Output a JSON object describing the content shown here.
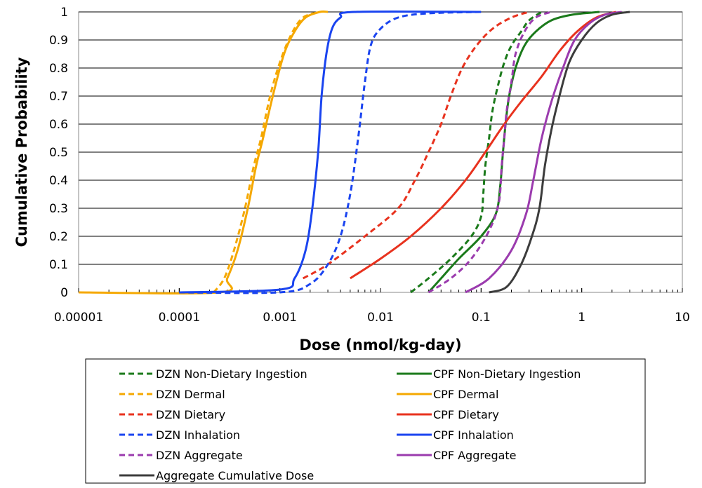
{
  "chart_data": {
    "type": "line",
    "title": "",
    "xlabel": "Dose (nmol/kg-day)",
    "ylabel": "Cumulative Probability",
    "x_scale": "log",
    "xlim": [
      1e-05,
      10
    ],
    "ylim": [
      0,
      1
    ],
    "x_ticks": [
      "0.00001",
      "0.0001",
      "0.001",
      "0.01",
      "0.1",
      "1",
      "10"
    ],
    "y_ticks": [
      "0",
      "0.1",
      "0.2",
      "0.3",
      "0.4",
      "0.5",
      "0.6",
      "0.7",
      "0.8",
      "0.9",
      "1"
    ],
    "grid": "horizontal",
    "legend_position": "bottom",
    "series": [
      {
        "name": "DZN Non-Dietary Ingestion",
        "color": "#1b7a1b",
        "dash": "dashed",
        "points": [
          [
            0.02,
            0
          ],
          [
            0.03,
            0.05
          ],
          [
            0.05,
            0.12
          ],
          [
            0.08,
            0.2
          ],
          [
            0.1,
            0.27
          ],
          [
            0.105,
            0.35
          ],
          [
            0.11,
            0.45
          ],
          [
            0.12,
            0.55
          ],
          [
            0.13,
            0.65
          ],
          [
            0.15,
            0.75
          ],
          [
            0.17,
            0.82
          ],
          [
            0.2,
            0.88
          ],
          [
            0.25,
            0.93
          ],
          [
            0.3,
            0.97
          ],
          [
            0.4,
            1
          ]
        ]
      },
      {
        "name": "CPF Non-Dietary Ingestion",
        "color": "#1b7a1b",
        "dash": "solid",
        "points": [
          [
            0.03,
            0
          ],
          [
            0.04,
            0.05
          ],
          [
            0.06,
            0.12
          ],
          [
            0.1,
            0.2
          ],
          [
            0.14,
            0.28
          ],
          [
            0.155,
            0.38
          ],
          [
            0.165,
            0.5
          ],
          [
            0.175,
            0.6
          ],
          [
            0.19,
            0.7
          ],
          [
            0.22,
            0.8
          ],
          [
            0.27,
            0.88
          ],
          [
            0.35,
            0.93
          ],
          [
            0.5,
            0.97
          ],
          [
            0.8,
            0.99
          ],
          [
            1.5,
            1
          ]
        ]
      },
      {
        "name": "DZN Dermal",
        "color": "#f5a800",
        "dash": "dashed",
        "points": [
          [
            0.00022,
            0
          ],
          [
            0.00028,
            0.05
          ],
          [
            0.00035,
            0.15
          ],
          [
            0.00045,
            0.3
          ],
          [
            0.00055,
            0.45
          ],
          [
            0.00065,
            0.55
          ],
          [
            0.0008,
            0.7
          ],
          [
            0.001,
            0.82
          ],
          [
            0.0013,
            0.92
          ],
          [
            0.0017,
            0.98
          ],
          [
            0.0025,
            1
          ]
        ]
      },
      {
        "name": "CPF Dermal",
        "color": "#f5a800",
        "dash": "solid",
        "points": [
          [
            1e-05,
            0
          ],
          [
            0.00025,
            0
          ],
          [
            0.0003,
            0.05
          ],
          [
            0.00038,
            0.15
          ],
          [
            0.00048,
            0.3
          ],
          [
            0.00058,
            0.45
          ],
          [
            0.00068,
            0.55
          ],
          [
            0.00085,
            0.7
          ],
          [
            0.0011,
            0.85
          ],
          [
            0.0014,
            0.93
          ],
          [
            0.0018,
            0.98
          ],
          [
            0.0025,
            1
          ],
          [
            0.003,
            1
          ]
        ]
      },
      {
        "name": "DZN Dietary",
        "color": "#e8321e",
        "dash": "dashed",
        "points": [
          [
            0.0017,
            0.05
          ],
          [
            0.003,
            0.1
          ],
          [
            0.007,
            0.2
          ],
          [
            0.015,
            0.3
          ],
          [
            0.022,
            0.4
          ],
          [
            0.03,
            0.5
          ],
          [
            0.04,
            0.6
          ],
          [
            0.05,
            0.7
          ],
          [
            0.065,
            0.8
          ],
          [
            0.09,
            0.88
          ],
          [
            0.13,
            0.94
          ],
          [
            0.2,
            0.98
          ],
          [
            0.3,
            1
          ]
        ]
      },
      {
        "name": "CPF Dietary",
        "color": "#e8321e",
        "dash": "solid",
        "points": [
          [
            0.005,
            0.05
          ],
          [
            0.01,
            0.12
          ],
          [
            0.02,
            0.2
          ],
          [
            0.04,
            0.3
          ],
          [
            0.07,
            0.4
          ],
          [
            0.11,
            0.5
          ],
          [
            0.17,
            0.6
          ],
          [
            0.25,
            0.68
          ],
          [
            0.4,
            0.77
          ],
          [
            0.6,
            0.86
          ],
          [
            0.9,
            0.93
          ],
          [
            1.4,
            0.98
          ],
          [
            2.2,
            1
          ]
        ]
      },
      {
        "name": "DZN Inhalation",
        "color": "#1a44f0",
        "dash": "dashed",
        "points": [
          [
            0.0001,
            0
          ],
          [
            0.001,
            0
          ],
          [
            0.002,
            0.03
          ],
          [
            0.003,
            0.1
          ],
          [
            0.004,
            0.2
          ],
          [
            0.005,
            0.35
          ],
          [
            0.006,
            0.55
          ],
          [
            0.007,
            0.75
          ],
          [
            0.008,
            0.88
          ],
          [
            0.01,
            0.94
          ],
          [
            0.015,
            0.98
          ],
          [
            0.03,
            0.995
          ],
          [
            0.1,
            1
          ]
        ]
      },
      {
        "name": "CPF Inhalation",
        "color": "#1a44f0",
        "dash": "solid",
        "points": [
          [
            0.0001,
            0
          ],
          [
            0.001,
            0.01
          ],
          [
            0.0014,
            0.05
          ],
          [
            0.0018,
            0.15
          ],
          [
            0.0021,
            0.3
          ],
          [
            0.0024,
            0.5
          ],
          [
            0.0026,
            0.7
          ],
          [
            0.0029,
            0.85
          ],
          [
            0.0033,
            0.94
          ],
          [
            0.004,
            0.98
          ],
          [
            0.0055,
            1
          ],
          [
            0.1,
            1
          ]
        ]
      },
      {
        "name": "DZN Aggregate",
        "color": "#9b3bae",
        "dash": "dashed",
        "points": [
          [
            0.03,
            0
          ],
          [
            0.05,
            0.05
          ],
          [
            0.08,
            0.12
          ],
          [
            0.12,
            0.22
          ],
          [
            0.15,
            0.32
          ],
          [
            0.16,
            0.45
          ],
          [
            0.17,
            0.55
          ],
          [
            0.18,
            0.65
          ],
          [
            0.2,
            0.75
          ],
          [
            0.22,
            0.85
          ],
          [
            0.27,
            0.93
          ],
          [
            0.35,
            0.98
          ],
          [
            0.5,
            1
          ]
        ]
      },
      {
        "name": "CPF Aggregate",
        "color": "#9b3bae",
        "dash": "solid",
        "points": [
          [
            0.07,
            0
          ],
          [
            0.12,
            0.05
          ],
          [
            0.2,
            0.15
          ],
          [
            0.28,
            0.28
          ],
          [
            0.33,
            0.4
          ],
          [
            0.4,
            0.55
          ],
          [
            0.5,
            0.68
          ],
          [
            0.65,
            0.8
          ],
          [
            0.85,
            0.9
          ],
          [
            1.2,
            0.96
          ],
          [
            1.7,
            0.99
          ],
          [
            2.5,
            1
          ]
        ]
      },
      {
        "name": "Aggregate Cumulative Dose",
        "color": "#3c3c3c",
        "dash": "solid",
        "points": [
          [
            0.12,
            0
          ],
          [
            0.18,
            0.02
          ],
          [
            0.25,
            0.1
          ],
          [
            0.32,
            0.2
          ],
          [
            0.38,
            0.3
          ],
          [
            0.43,
            0.45
          ],
          [
            0.5,
            0.58
          ],
          [
            0.6,
            0.7
          ],
          [
            0.75,
            0.82
          ],
          [
            1,
            0.9
          ],
          [
            1.4,
            0.96
          ],
          [
            2,
            0.99
          ],
          [
            3,
            1
          ]
        ]
      }
    ]
  }
}
